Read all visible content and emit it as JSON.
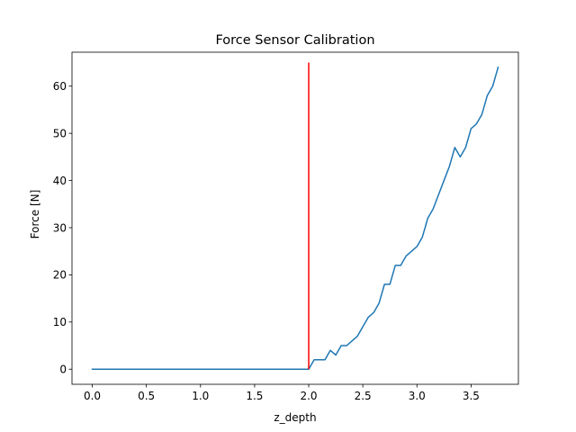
{
  "chart_data": {
    "type": "line",
    "title": "Force Sensor Calibration",
    "xlabel": "z_depth",
    "ylabel": "Force [N]",
    "xlim": [
      -0.1875,
      3.9375
    ],
    "ylim": [
      -3.2,
      67.2
    ],
    "xticks": [
      0.0,
      0.5,
      1.0,
      1.5,
      2.0,
      2.5,
      3.0,
      3.5
    ],
    "xtick_labels": [
      "0.0",
      "0.5",
      "1.0",
      "1.5",
      "2.0",
      "2.5",
      "3.0",
      "3.5"
    ],
    "yticks": [
      0,
      10,
      20,
      30,
      40,
      50,
      60
    ],
    "ytick_labels": [
      "0",
      "10",
      "20",
      "30",
      "40",
      "50",
      "60"
    ],
    "grid": false,
    "series": [
      {
        "color": "#1f77b4",
        "x": [
          0.0,
          0.05,
          0.1,
          0.15,
          0.2,
          0.25,
          0.3,
          0.35,
          0.4,
          0.45,
          0.5,
          0.55,
          0.6,
          0.65,
          0.7,
          0.75,
          0.8,
          0.85,
          0.9,
          0.95,
          1.0,
          1.05,
          1.1,
          1.15,
          1.2,
          1.25,
          1.3,
          1.35,
          1.4,
          1.45,
          1.5,
          1.55,
          1.6,
          1.65,
          1.7,
          1.75,
          1.8,
          1.85,
          1.9,
          1.95,
          2.0,
          2.05,
          2.1,
          2.15,
          2.2,
          2.25,
          2.3,
          2.35,
          2.4,
          2.45,
          2.5,
          2.55,
          2.6,
          2.65,
          2.7,
          2.75,
          2.8,
          2.85,
          2.9,
          2.95,
          3.0,
          3.05,
          3.1,
          3.15,
          3.2,
          3.25,
          3.3,
          3.35,
          3.4,
          3.45,
          3.5,
          3.55,
          3.6,
          3.65,
          3.7,
          3.75
        ],
        "y": [
          0,
          0,
          0,
          0,
          0,
          0,
          0,
          0,
          0,
          0,
          0,
          0,
          0,
          0,
          0,
          0,
          0,
          0,
          0,
          0,
          0,
          0,
          0,
          0,
          0,
          0,
          0,
          0,
          0,
          0,
          0,
          0,
          0,
          0,
          0,
          0,
          0,
          0,
          0,
          0,
          0,
          2,
          2,
          2,
          4,
          3,
          5,
          5,
          6,
          7,
          9,
          11,
          12,
          14,
          18,
          18,
          22,
          22,
          24,
          25,
          26,
          28,
          32,
          34,
          37,
          40,
          43,
          47,
          45,
          47,
          51,
          52,
          54,
          58,
          60,
          64
        ]
      }
    ],
    "vertical_line": {
      "x": 2.0,
      "y_from": 0,
      "y_to": 65,
      "color": "#ff0000"
    }
  }
}
